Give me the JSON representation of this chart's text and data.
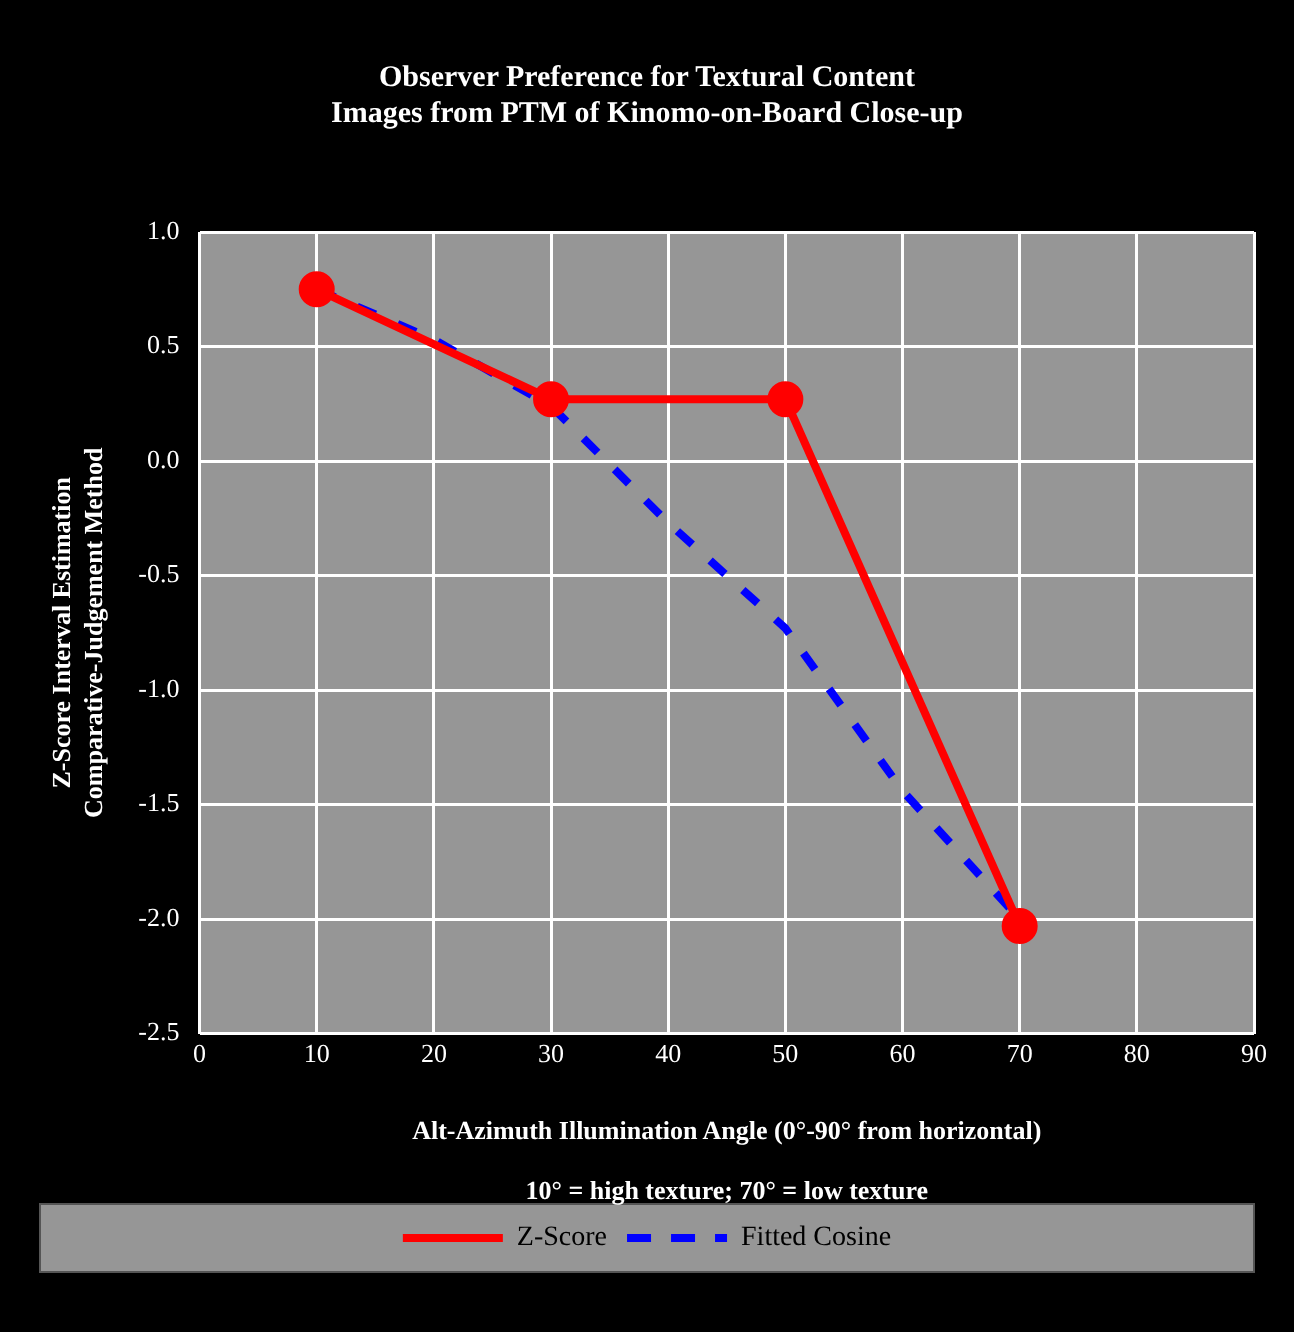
{
  "chart_data": {
    "type": "line",
    "title": "Observer Preference for Textural Content",
    "subtitle": "Images from PTM of Kinomo-on-Board Close-up",
    "xlabel": "Alt-Azimuth Illumination Angle (0°-90° from horizontal)",
    "annotations": [
      "10° = high texture; 70° = low texture"
    ],
    "ylabel": "Z-Score Interval Estimation\nComparative-Judgement Method",
    "xlim": [
      0,
      90
    ],
    "xticks": [
      0,
      10,
      20,
      30,
      40,
      50,
      60,
      70,
      80,
      90
    ],
    "ylim": [
      -2.5,
      1.0
    ],
    "yticks": [
      {
        "value": -2.5,
        "label": "-2.5"
      },
      {
        "value": -2.0,
        "label": "-2.0"
      },
      {
        "value": -1.5,
        "label": "-1.5"
      },
      {
        "value": -1.0,
        "label": "-1.0"
      },
      {
        "value": -0.5,
        "label": "-0.5"
      },
      {
        "value": 0,
        "label": "0.0"
      },
      {
        "value": 0.5,
        "label": "0.5"
      },
      {
        "value": 1.0,
        "label": "1.0"
      }
    ],
    "grid": true,
    "legend": "bottom",
    "series": [
      {
        "name": "Z-Score",
        "color": "#ff0000",
        "x": [
          10,
          30,
          50,
          70
        ],
        "values": [
          0.75,
          0.27,
          0.27,
          -2.03
        ],
        "marker": "circle",
        "line_style": "solid"
      },
      {
        "name": "Fitted Cosine",
        "color": "#0000ff",
        "x": [
          10,
          20,
          30,
          40,
          50,
          60,
          70
        ],
        "values": [
          0.75,
          0.53,
          0.24,
          -0.27,
          -0.73,
          -1.44,
          -2.0
        ],
        "marker": "none",
        "line_style": "dashed"
      }
    ]
  }
}
